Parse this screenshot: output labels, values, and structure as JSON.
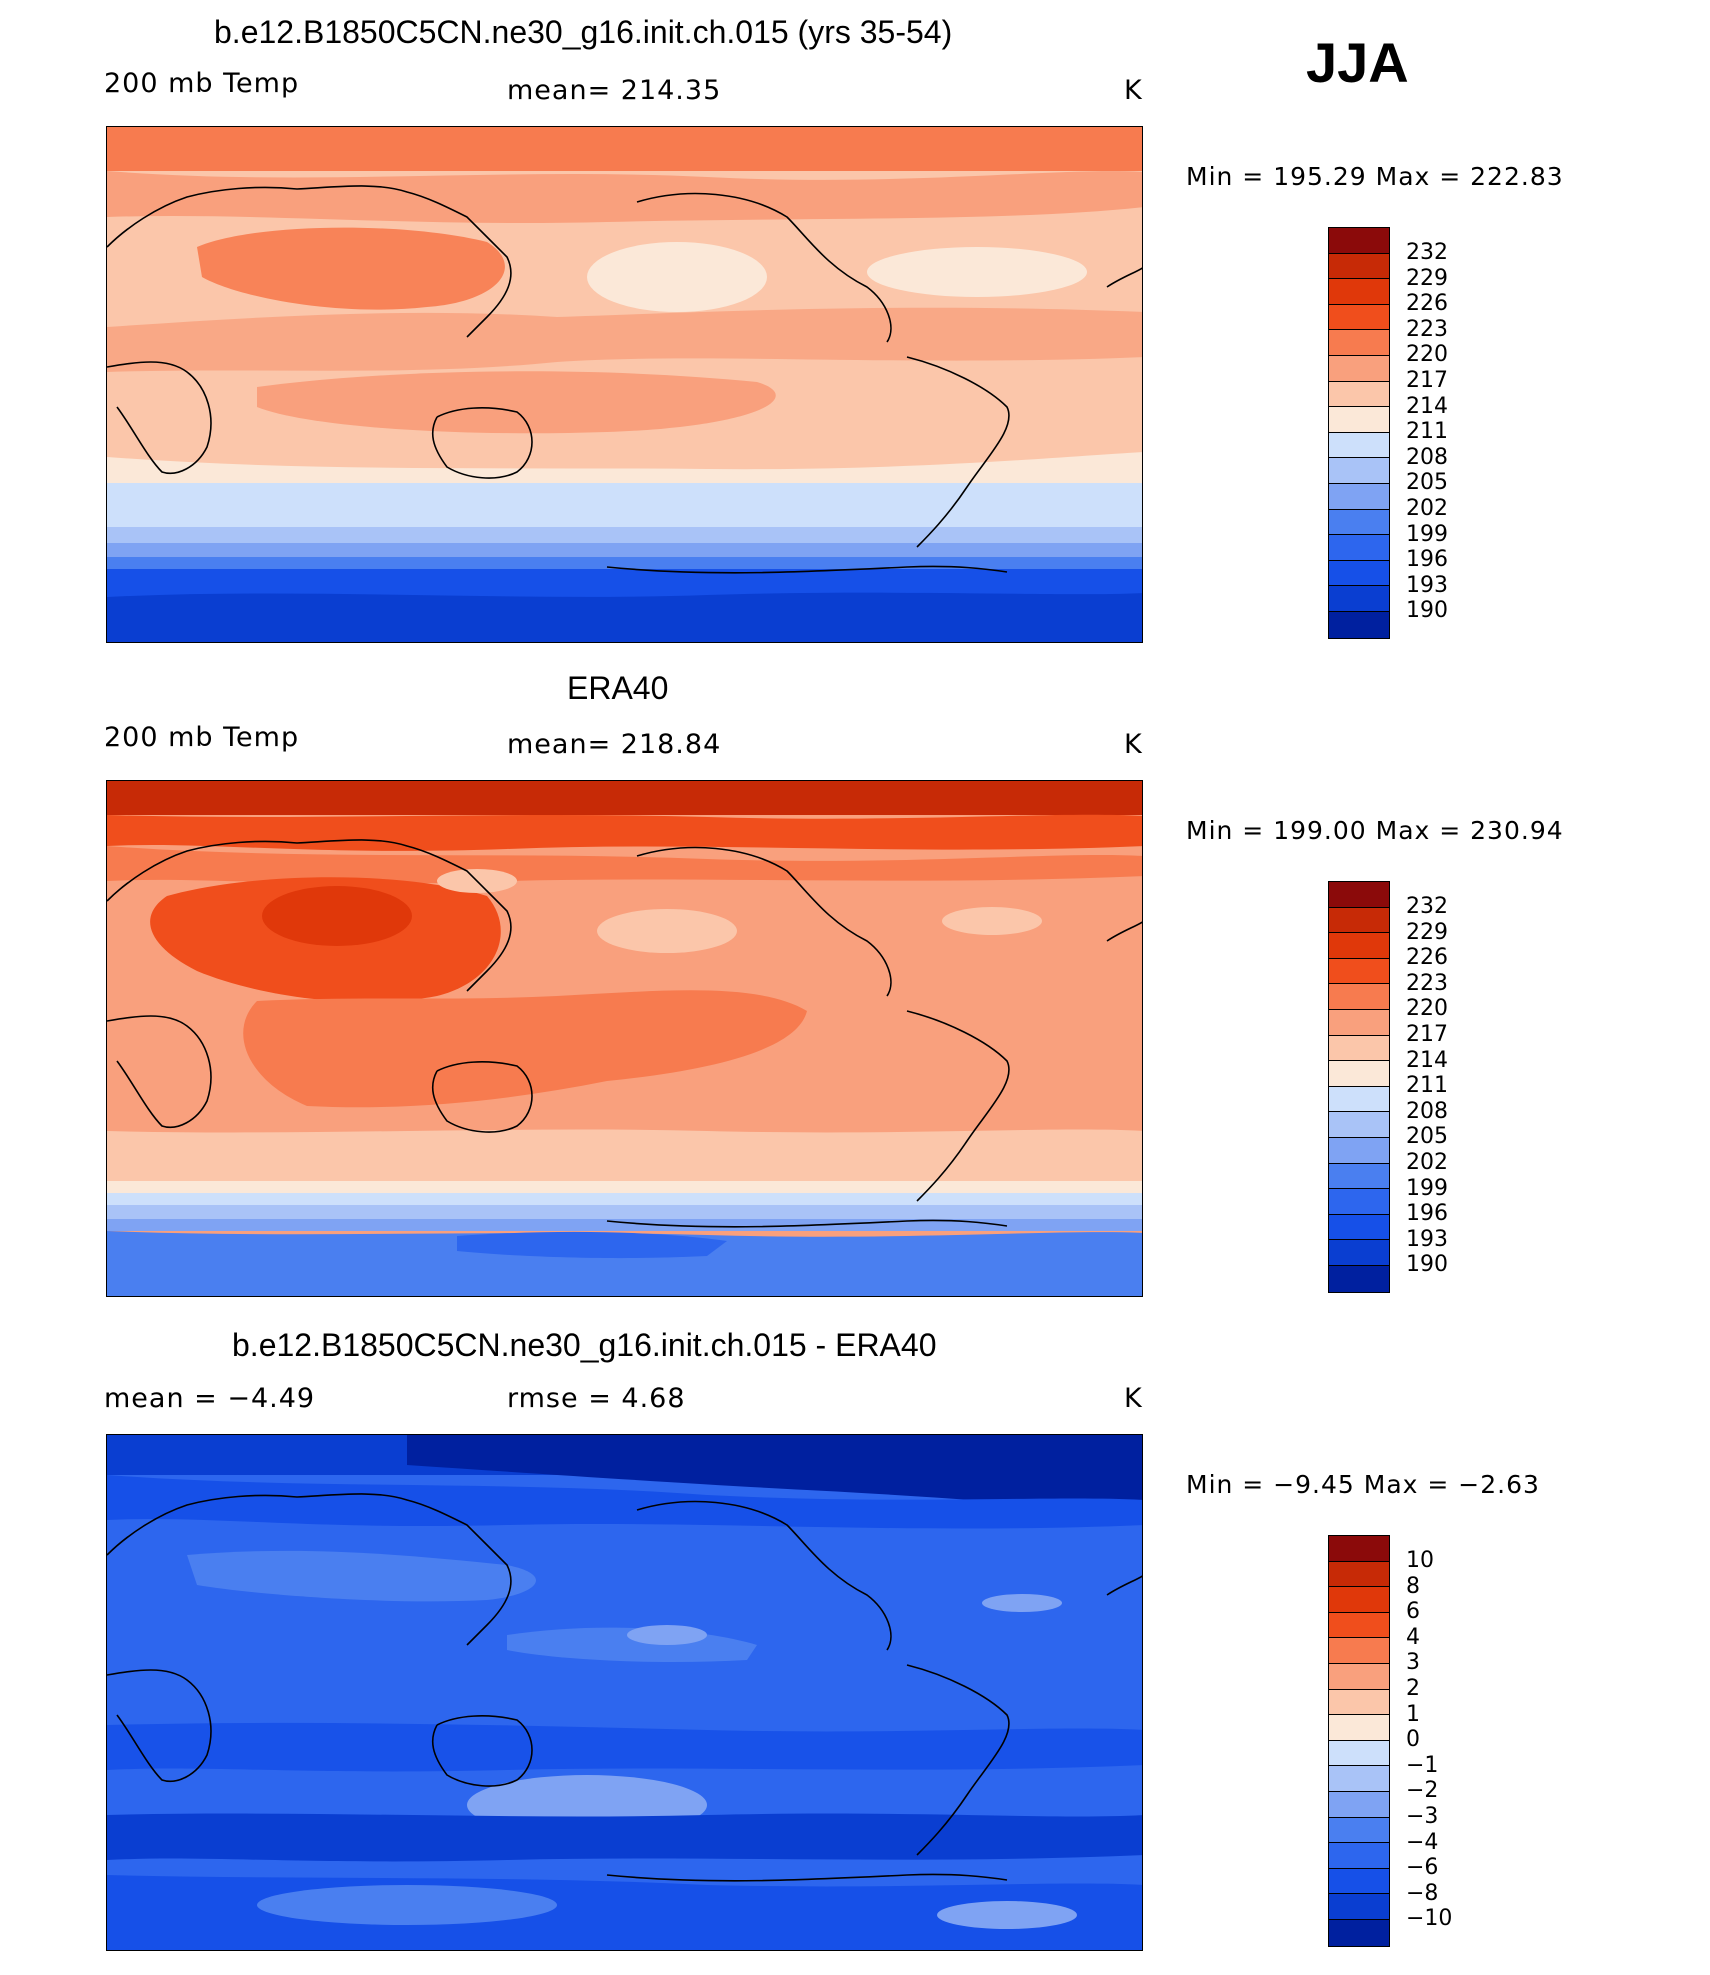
{
  "season": "JJA",
  "units": "K",
  "palette_warm_cool": [
    "#000080",
    "#00209f",
    "#0a3ed1",
    "#1650e8",
    "#2d66ee",
    "#4a7ff0",
    "#7fa3f3",
    "#a9c3f7",
    "#cde0fb",
    "#fbe8d8",
    "#fbc6aa",
    "#f9a07d",
    "#f77b4f",
    "#f04e1c",
    "#c72a06",
    "#8b0a0a"
  ],
  "panels": [
    {
      "title": "b.e12.B1850C5CN.ne30_g16.init.ch.015 (yrs 35-54)",
      "left_label": "200 mb Temp",
      "center_label": "mean=  214.35",
      "right_label": "K",
      "minmax": "Min  =  195.29  Max  =  222.83",
      "levels": [
        "232",
        "229",
        "226",
        "223",
        "220",
        "217",
        "214",
        "211",
        "208",
        "205",
        "202",
        "199",
        "196",
        "193",
        "190"
      ]
    },
    {
      "title": "ERA40",
      "left_label": "200 mb Temp",
      "center_label": "mean=  218.84",
      "right_label": "K",
      "minmax": "Min  =  199.00  Max  =  230.94",
      "levels": [
        "232",
        "229",
        "226",
        "223",
        "220",
        "217",
        "214",
        "211",
        "208",
        "205",
        "202",
        "199",
        "196",
        "193",
        "190"
      ]
    },
    {
      "title": "b.e12.B1850C5CN.ne30_g16.init.ch.015 - ERA40",
      "left_label": "mean  =    −4.49",
      "center_label": "rmse  =     4.68",
      "right_label": "K",
      "minmax": "Min  =    −9.45  Max  =    −2.63",
      "levels": [
        "10",
        "8",
        "6",
        "4",
        "3",
        "2",
        "1",
        "0",
        "−1",
        "−2",
        "−3",
        "−4",
        "−6",
        "−8",
        "−10"
      ]
    }
  ]
}
